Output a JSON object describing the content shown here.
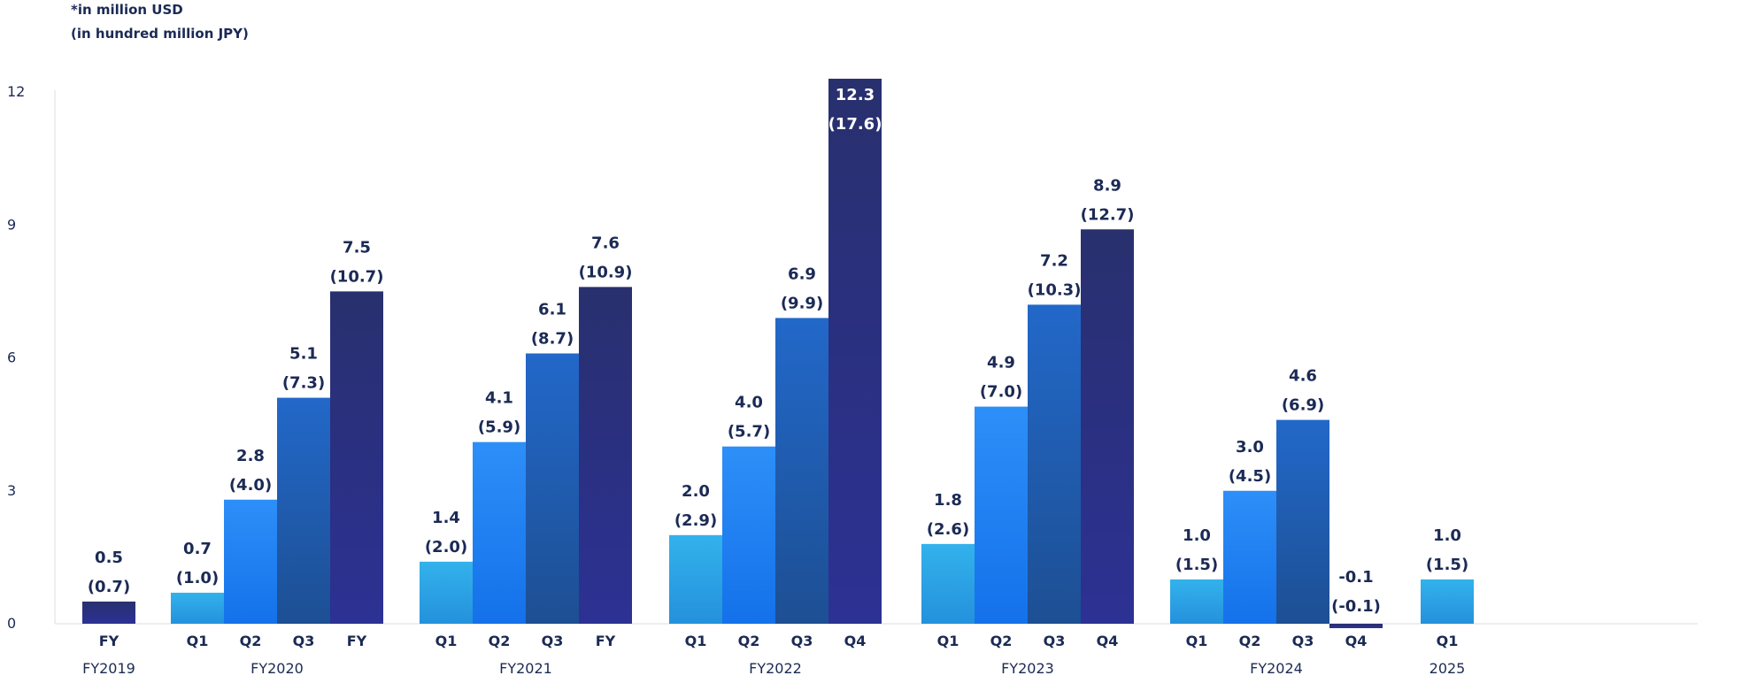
{
  "notes": {
    "unit_usd": "*in million USD",
    "unit_jpy": "(in hundred million JPY)"
  },
  "colors": {
    "Q1": "#2a9fe3",
    "Q2": "#1c84f2",
    "Q3": "#1f5fb5",
    "final": "#2a2f84",
    "axis": "#d8dde6",
    "text": "#1b2a55"
  },
  "chart_data": {
    "type": "bar",
    "ylim": [
      0,
      12
    ],
    "yticks": [
      0,
      3,
      6,
      9,
      12
    ],
    "grid": false,
    "groups": [
      {
        "label": "FY2019",
        "bars": [
          {
            "q": "FY",
            "usd": 0.5,
            "jpy": 0.7,
            "usd_label": "0.5",
            "jpy_label": "(0.7)"
          }
        ]
      },
      {
        "label": "FY2020",
        "bars": [
          {
            "q": "Q1",
            "usd": 0.7,
            "jpy": 1.0,
            "usd_label": "0.7",
            "jpy_label": "(1.0)"
          },
          {
            "q": "Q2",
            "usd": 2.8,
            "jpy": 4.0,
            "usd_label": "2.8",
            "jpy_label": "(4.0)"
          },
          {
            "q": "Q3",
            "usd": 5.1,
            "jpy": 7.3,
            "usd_label": "5.1",
            "jpy_label": "(7.3)"
          },
          {
            "q": "FY",
            "usd": 7.5,
            "jpy": 10.7,
            "usd_label": "7.5",
            "jpy_label": "(10.7)"
          }
        ]
      },
      {
        "label": "FY2021",
        "bars": [
          {
            "q": "Q1",
            "usd": 1.4,
            "jpy": 2.0,
            "usd_label": "1.4",
            "jpy_label": "(2.0)"
          },
          {
            "q": "Q2",
            "usd": 4.1,
            "jpy": 5.9,
            "usd_label": "4.1",
            "jpy_label": "(5.9)"
          },
          {
            "q": "Q3",
            "usd": 6.1,
            "jpy": 8.7,
            "usd_label": "6.1",
            "jpy_label": "(8.7)"
          },
          {
            "q": "FY",
            "usd": 7.6,
            "jpy": 10.9,
            "usd_label": "7.6",
            "jpy_label": "(10.9)"
          }
        ]
      },
      {
        "label": "FY2022",
        "bars": [
          {
            "q": "Q1",
            "usd": 2.0,
            "jpy": 2.9,
            "usd_label": "2.0",
            "jpy_label": "(2.9)"
          },
          {
            "q": "Q2",
            "usd": 4.0,
            "jpy": 5.7,
            "usd_label": "4.0",
            "jpy_label": "(5.7)"
          },
          {
            "q": "Q3",
            "usd": 6.9,
            "jpy": 9.9,
            "usd_label": "6.9",
            "jpy_label": "(9.9)"
          },
          {
            "q": "Q4",
            "usd": 12.3,
            "jpy": 17.6,
            "usd_label": "12.3",
            "jpy_label": "(17.6)"
          }
        ]
      },
      {
        "label": "FY2023",
        "bars": [
          {
            "q": "Q1",
            "usd": 1.8,
            "jpy": 2.6,
            "usd_label": "1.8",
            "jpy_label": "(2.6)"
          },
          {
            "q": "Q2",
            "usd": 4.9,
            "jpy": 7.0,
            "usd_label": "4.9",
            "jpy_label": "(7.0)"
          },
          {
            "q": "Q3",
            "usd": 7.2,
            "jpy": 10.3,
            "usd_label": "7.2",
            "jpy_label": "(10.3)"
          },
          {
            "q": "Q4",
            "usd": 8.9,
            "jpy": 12.7,
            "usd_label": "8.9",
            "jpy_label": "(12.7)"
          }
        ]
      },
      {
        "label": "FY2024",
        "bars": [
          {
            "q": "Q1",
            "usd": 1.0,
            "jpy": 1.5,
            "usd_label": "1.0",
            "jpy_label": "(1.5)"
          },
          {
            "q": "Q2",
            "usd": 3.0,
            "jpy": 4.5,
            "usd_label": "3.0",
            "jpy_label": "(4.5)"
          },
          {
            "q": "Q3",
            "usd": 4.6,
            "jpy": 6.9,
            "usd_label": "4.6",
            "jpy_label": "(6.9)"
          },
          {
            "q": "Q4",
            "usd": -0.1,
            "jpy": -0.1,
            "usd_label": "-0.1",
            "jpy_label": "(-0.1)"
          }
        ]
      },
      {
        "label": "2025",
        "bars": [
          {
            "q": "Q1",
            "usd": 1.0,
            "jpy": 1.5,
            "usd_label": "1.0",
            "jpy_label": "(1.5)"
          }
        ]
      }
    ]
  }
}
